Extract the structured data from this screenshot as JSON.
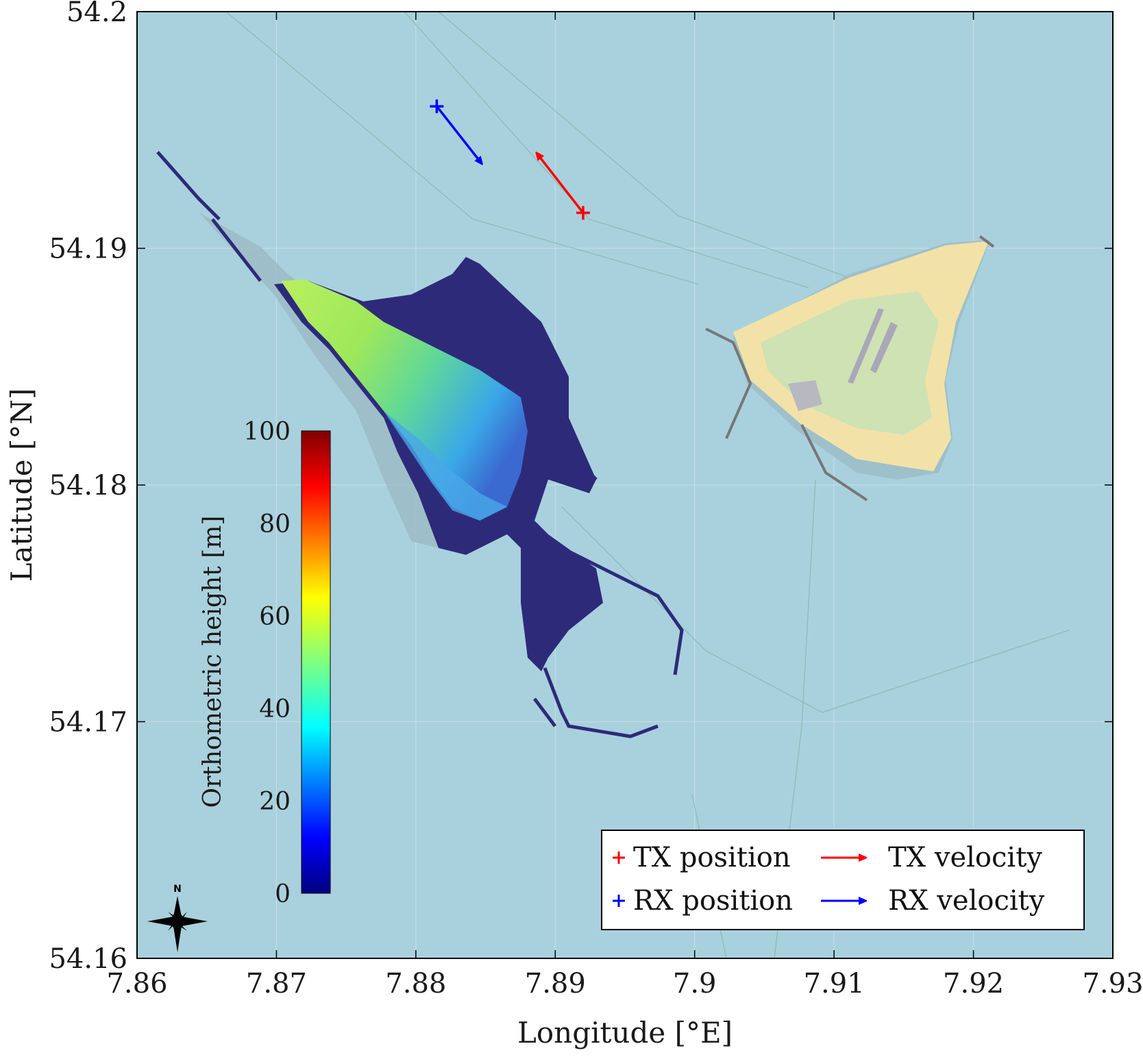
{
  "map": {
    "x_axis": {
      "label": "Longitude [°E]",
      "min": 7.86,
      "max": 7.93,
      "ticks": [
        7.86,
        7.87,
        7.88,
        7.89,
        7.9,
        7.91,
        7.92,
        7.93
      ],
      "tick_labels": [
        "7.86",
        "7.87",
        "7.88",
        "7.89",
        "7.9",
        "7.91",
        "7.92",
        "7.93"
      ]
    },
    "y_axis": {
      "label": "Latitude [°N]",
      "min": 54.16,
      "max": 54.2,
      "ticks": [
        54.16,
        54.17,
        54.18,
        54.19,
        54.2
      ],
      "tick_labels": [
        "54.16",
        "54.17",
        "54.18",
        "54.19",
        "54.2"
      ]
    },
    "grid": true,
    "colors": {
      "sea": "#a9d1dd",
      "low_terrain": "#2e2a7a",
      "tx": "#ff0000",
      "rx": "#0000ff",
      "beach": "#f2e2a8",
      "vegetation": "#cfe2b4"
    },
    "colorbar": {
      "label": "Orthometric height [m]",
      "min": 0,
      "max": 100,
      "ticks": [
        0,
        20,
        40,
        60,
        80,
        100
      ],
      "tick_labels": [
        "0",
        "20",
        "40",
        "60",
        "80",
        "100"
      ],
      "colormap": "jet"
    },
    "tx": {
      "position": [
        7.892,
        54.1915
      ],
      "velocity_tip": [
        7.8887,
        54.194
      ]
    },
    "rx": {
      "position": [
        7.8815,
        54.196
      ],
      "velocity_tip": [
        7.8847,
        54.1936
      ]
    },
    "legend": {
      "placement": "bottom-right",
      "items": [
        {
          "marker": "+",
          "label": "TX position",
          "color": "#ff0000"
        },
        {
          "marker": "arrow",
          "label": "TX velocity",
          "color": "#ff0000"
        },
        {
          "marker": "+",
          "label": "RX position",
          "color": "#0000ff"
        },
        {
          "marker": "arrow",
          "label": "RX velocity",
          "color": "#0000ff"
        }
      ]
    },
    "compass": {
      "label": "N",
      "icon": "compass-rose-icon"
    }
  }
}
